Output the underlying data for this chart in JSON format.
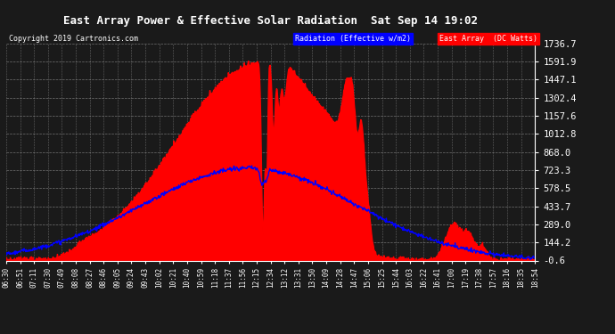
{
  "title": "East Array Power & Effective Solar Radiation  Sat Sep 14 19:02",
  "copyright": "Copyright 2019 Cartronics.com",
  "legend_radiation": "Radiation (Effective w/m2)",
  "legend_east_array": "East Array  (DC Watts)",
  "yticks": [
    1736.7,
    1591.9,
    1447.1,
    1302.4,
    1157.6,
    1012.8,
    868.0,
    723.3,
    578.5,
    433.7,
    289.0,
    144.2,
    -0.6
  ],
  "ymin": -0.6,
  "ymax": 1736.7,
  "bg_color": "#1a1a1a",
  "plot_bg_color": "#1a1a1a",
  "title_color": "#ffffff",
  "grid_color": "#888888",
  "radiation_color": "#0000ff",
  "east_array_color": "#ff0000",
  "xtick_labels": [
    "06:30",
    "06:51",
    "07:11",
    "07:30",
    "07:49",
    "08:08",
    "08:27",
    "08:46",
    "09:05",
    "09:24",
    "09:43",
    "10:02",
    "10:21",
    "10:40",
    "10:59",
    "11:18",
    "11:37",
    "11:56",
    "12:15",
    "12:34",
    "13:12",
    "13:31",
    "13:50",
    "14:09",
    "14:28",
    "14:47",
    "15:06",
    "15:25",
    "15:44",
    "16:03",
    "16:22",
    "16:41",
    "17:00",
    "17:19",
    "17:38",
    "17:57",
    "18:16",
    "18:35",
    "18:54"
  ],
  "n_points": 1000
}
